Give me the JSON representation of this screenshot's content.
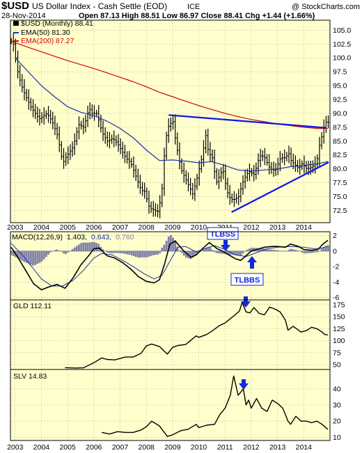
{
  "header": {
    "symbol": "$USD",
    "name": "US Dollar Index - Cash Settle (EOD)",
    "exchange": "ICE",
    "brand": "@ StockCharts.com",
    "date": "28-Nov-2014",
    "quote": "Open 87.13  High 88.51  Low 86.97  Close 88.41  Chg +1.44 (+1.66%)"
  },
  "colors": {
    "panel_bg": "#ffffcc",
    "grid": "#bfbfb0",
    "price": "#000000",
    "ema50": "#1b2fa8",
    "ema200": "#d40000",
    "trendline": "#1010ee",
    "histogram": "#8080a8",
    "annotation": "#1428dd",
    "text": "#000000"
  },
  "chart_data": [
    {
      "type": "ohlc",
      "title": "$USD (Monthly) 88.41",
      "legend": [
        {
          "label": "$USD (Monthly) 88.41",
          "color": "#000000"
        },
        {
          "label": "EMA(50) 81.30",
          "color": "#1b2fa8"
        },
        {
          "label": "EMA(200) 87.27",
          "color": "#d40000"
        }
      ],
      "y_ticks": [
        "105.0",
        "102.5",
        "100.0",
        "97.5",
        "95.0",
        "92.5",
        "90.0",
        "87.5",
        "85.0",
        "82.5",
        "80.0",
        "77.5",
        "75.0",
        "72.5"
      ],
      "ylim": [
        70.3,
        106.8
      ],
      "x_ticks": [
        "2003",
        "2004",
        "2005",
        "2006",
        "2007",
        "2008",
        "2009",
        "2010",
        "2011",
        "2012",
        "2013",
        "2014"
      ],
      "xlim": [
        2002.82,
        2015.0
      ],
      "price_anchors": [
        [
          2003.0,
          103
        ],
        [
          2003.2,
          97
        ],
        [
          2003.4,
          94
        ],
        [
          2003.7,
          91
        ],
        [
          2004.0,
          89
        ],
        [
          2004.3,
          90
        ],
        [
          2004.5,
          88.5
        ],
        [
          2004.7,
          86
        ],
        [
          2004.9,
          81
        ],
        [
          2005.0,
          82
        ],
        [
          2005.3,
          84
        ],
        [
          2005.5,
          88
        ],
        [
          2005.7,
          87.5
        ],
        [
          2005.9,
          91
        ],
        [
          2006.0,
          90
        ],
        [
          2006.2,
          90
        ],
        [
          2006.4,
          86.5
        ],
        [
          2006.6,
          85
        ],
        [
          2006.8,
          85.5
        ],
        [
          2007.0,
          84.5
        ],
        [
          2007.3,
          82
        ],
        [
          2007.5,
          81
        ],
        [
          2007.7,
          78.5
        ],
        [
          2007.9,
          76
        ],
        [
          2008.0,
          76.2
        ],
        [
          2008.2,
          73
        ],
        [
          2008.4,
          72.5
        ],
        [
          2008.55,
          72.3
        ],
        [
          2008.7,
          77
        ],
        [
          2008.8,
          85
        ],
        [
          2008.95,
          88
        ],
        [
          2009.1,
          88.5
        ],
        [
          2009.2,
          85
        ],
        [
          2009.4,
          80
        ],
        [
          2009.6,
          78
        ],
        [
          2009.85,
          75.5
        ],
        [
          2010.0,
          78
        ],
        [
          2010.2,
          82
        ],
        [
          2010.35,
          86
        ],
        [
          2010.45,
          83
        ],
        [
          2010.6,
          82
        ],
        [
          2010.75,
          77.5
        ],
        [
          2010.9,
          79
        ],
        [
          2011.0,
          80
        ],
        [
          2011.15,
          76
        ],
        [
          2011.3,
          74.5
        ],
        [
          2011.45,
          74.5
        ],
        [
          2011.6,
          75
        ],
        [
          2011.75,
          77.5
        ],
        [
          2011.9,
          79
        ],
        [
          2012.0,
          79.5
        ],
        [
          2012.2,
          79
        ],
        [
          2012.35,
          81.5
        ],
        [
          2012.45,
          82.5
        ],
        [
          2012.6,
          82
        ],
        [
          2012.8,
          80
        ],
        [
          2013.0,
          79.7
        ],
        [
          2013.2,
          82
        ],
        [
          2013.4,
          82
        ],
        [
          2013.5,
          83
        ],
        [
          2013.6,
          81.5
        ],
        [
          2013.8,
          80.5
        ],
        [
          2013.9,
          80
        ],
        [
          2014.0,
          81
        ],
        [
          2014.2,
          80
        ],
        [
          2014.4,
          80.3
        ],
        [
          2014.55,
          81
        ],
        [
          2014.62,
          82.2
        ],
        [
          2014.7,
          84.8
        ],
        [
          2014.78,
          86
        ],
        [
          2014.85,
          87.5
        ],
        [
          2014.92,
          88.41
        ]
      ],
      "ema50": [
        [
          2003.0,
          100
        ],
        [
          2003.5,
          97.5
        ],
        [
          2004.0,
          95
        ],
        [
          2004.5,
          93
        ],
        [
          2005.0,
          91.2
        ],
        [
          2005.5,
          90.2
        ],
        [
          2006.0,
          89.6
        ],
        [
          2006.5,
          88.6
        ],
        [
          2007.0,
          87.3
        ],
        [
          2007.5,
          85.6
        ],
        [
          2008.0,
          83.4
        ],
        [
          2008.5,
          81.5
        ],
        [
          2009.0,
          81.6
        ],
        [
          2009.5,
          81.4
        ],
        [
          2010.0,
          81.1
        ],
        [
          2010.5,
          81.3
        ],
        [
          2011.0,
          80.6
        ],
        [
          2011.5,
          79.8
        ],
        [
          2012.0,
          79.6
        ],
        [
          2012.5,
          79.8
        ],
        [
          2013.0,
          80
        ],
        [
          2013.5,
          80.4
        ],
        [
          2014.0,
          80.6
        ],
        [
          2014.5,
          80.9
        ],
        [
          2014.92,
          81.3
        ]
      ],
      "ema200": [
        [
          2002.85,
          103
        ],
        [
          2003.5,
          101.9
        ],
        [
          2004.0,
          101.1
        ],
        [
          2004.5,
          100.3
        ],
        [
          2005.0,
          99.5
        ],
        [
          2005.5,
          98.8
        ],
        [
          2006.0,
          98.1
        ],
        [
          2006.5,
          97.3
        ],
        [
          2007.0,
          96.5
        ],
        [
          2007.5,
          95.7
        ],
        [
          2008.0,
          94.8
        ],
        [
          2008.5,
          93.8
        ],
        [
          2009.0,
          93
        ],
        [
          2009.5,
          92.2
        ],
        [
          2010.0,
          91.4
        ],
        [
          2010.5,
          90.7
        ],
        [
          2011.0,
          90
        ],
        [
          2011.5,
          89.4
        ],
        [
          2012.0,
          88.9
        ],
        [
          2012.5,
          88.5
        ],
        [
          2013.0,
          88.1
        ],
        [
          2013.5,
          87.8
        ],
        [
          2014.0,
          87.5
        ],
        [
          2014.5,
          87.3
        ],
        [
          2014.92,
          87.27
        ]
      ],
      "trendlines": [
        {
          "from": [
            2008.85,
            89.7
          ],
          "to": [
            2014.85,
            87.4
          ]
        },
        {
          "from": [
            2011.25,
            72.2
          ],
          "to": [
            2014.95,
            81.2
          ]
        }
      ]
    },
    {
      "type": "line",
      "title": "MACD(12,26,9) 1.403, 0.643, 0.760",
      "legend": [
        {
          "label": "MACD(12,26,9)",
          "color": "#000000"
        },
        {
          "label": "1.403,",
          "color": "#000000"
        },
        {
          "label": "0.643,",
          "color": "#1b2fa8"
        },
        {
          "label": "0.760",
          "color": "#8080a8"
        }
      ],
      "y_ticks": [
        "2",
        "0",
        "-2",
        "-4",
        "-6"
      ],
      "ylim": [
        -6.3,
        2.5
      ],
      "macd": [
        [
          2002.85,
          0.5
        ],
        [
          2003.1,
          -0.8
        ],
        [
          2003.4,
          -2.5
        ],
        [
          2003.7,
          -4.2
        ],
        [
          2004.0,
          -5.0
        ],
        [
          2004.3,
          -4.6
        ],
        [
          2004.6,
          -4.3
        ],
        [
          2004.9,
          -4.8
        ],
        [
          2005.2,
          -3.5
        ],
        [
          2005.5,
          -1.8
        ],
        [
          2005.8,
          -0.6
        ],
        [
          2006.0,
          0.3
        ],
        [
          2006.2,
          0.4
        ],
        [
          2006.5,
          -0.6
        ],
        [
          2006.8,
          -0.9
        ],
        [
          2007.1,
          -1.5
        ],
        [
          2007.4,
          -2.3
        ],
        [
          2007.7,
          -3.3
        ],
        [
          2008.0,
          -3.9
        ],
        [
          2008.3,
          -4.1
        ],
        [
          2008.5,
          -3.7
        ],
        [
          2008.7,
          -1.6
        ],
        [
          2008.9,
          0.9
        ],
        [
          2009.1,
          1.3
        ],
        [
          2009.4,
          0.1
        ],
        [
          2009.7,
          -0.8
        ],
        [
          2009.9,
          -0.5
        ],
        [
          2010.2,
          0.5
        ],
        [
          2010.4,
          1.1
        ],
        [
          2010.7,
          0.3
        ],
        [
          2010.9,
          0.0
        ],
        [
          2011.2,
          -0.6
        ],
        [
          2011.4,
          -1.0
        ],
        [
          2011.6,
          -1.2
        ],
        [
          2011.8,
          -0.6
        ],
        [
          2012.0,
          0.0
        ],
        [
          2012.3,
          0.3
        ],
        [
          2012.5,
          0.5
        ],
        [
          2012.8,
          0.6
        ],
        [
          2013.0,
          0.6
        ],
        [
          2013.3,
          0.5
        ],
        [
          2013.5,
          0.9
        ],
        [
          2013.8,
          0.6
        ],
        [
          2014.0,
          0.2
        ],
        [
          2014.3,
          0.1
        ],
        [
          2014.55,
          0.2
        ],
        [
          2014.7,
          0.8
        ],
        [
          2014.92,
          1.4
        ]
      ],
      "signal": [
        [
          2002.85,
          1.0
        ],
        [
          2003.3,
          -0.6
        ],
        [
          2003.7,
          -2.3
        ],
        [
          2004.0,
          -3.6
        ],
        [
          2004.4,
          -4.5
        ],
        [
          2004.8,
          -4.5
        ],
        [
          2005.2,
          -3.8
        ],
        [
          2005.6,
          -2.5
        ],
        [
          2006.0,
          -0.9
        ],
        [
          2006.3,
          -0.3
        ],
        [
          2006.7,
          -0.5
        ],
        [
          2007.1,
          -1.2
        ],
        [
          2007.5,
          -2.0
        ],
        [
          2007.9,
          -2.9
        ],
        [
          2008.3,
          -3.6
        ],
        [
          2008.6,
          -3.1
        ],
        [
          2008.9,
          -1.3
        ],
        [
          2009.2,
          0.5
        ],
        [
          2009.5,
          0.6
        ],
        [
          2009.9,
          -0.1
        ],
        [
          2010.3,
          0.4
        ],
        [
          2010.6,
          0.7
        ],
        [
          2011.0,
          0.2
        ],
        [
          2011.4,
          -0.5
        ],
        [
          2011.8,
          -0.7
        ],
        [
          2012.2,
          -0.2
        ],
        [
          2012.6,
          0.3
        ],
        [
          2013.0,
          0.5
        ],
        [
          2013.5,
          0.6
        ],
        [
          2014.0,
          0.5
        ],
        [
          2014.4,
          0.3
        ],
        [
          2014.7,
          0.4
        ],
        [
          2014.92,
          0.64
        ]
      ],
      "annotations": [
        "TLBSS",
        "TLBBS"
      ]
    },
    {
      "type": "line",
      "title": "GLD 112.11",
      "y_ticks": [
        "175",
        "150",
        "125",
        "100",
        "75",
        "50"
      ],
      "ylim": [
        40,
        185
      ],
      "xlim": [
        2002.82,
        2015.0
      ],
      "values": [
        [
          2004.9,
          43.8
        ],
        [
          2005.3,
          43
        ],
        [
          2005.6,
          43.5
        ],
        [
          2006.0,
          54
        ],
        [
          2006.3,
          64
        ],
        [
          2006.5,
          61
        ],
        [
          2006.8,
          60
        ],
        [
          2007.2,
          66
        ],
        [
          2007.5,
          66
        ],
        [
          2007.8,
          74
        ],
        [
          2008.0,
          89
        ],
        [
          2008.2,
          93
        ],
        [
          2008.5,
          88
        ],
        [
          2008.8,
          72
        ],
        [
          2009.0,
          86
        ],
        [
          2009.2,
          90
        ],
        [
          2009.5,
          92
        ],
        [
          2009.9,
          110
        ],
        [
          2010.0,
          107
        ],
        [
          2010.3,
          113
        ],
        [
          2010.5,
          120
        ],
        [
          2010.8,
          132
        ],
        [
          2011.0,
          137
        ],
        [
          2011.3,
          150
        ],
        [
          2011.55,
          162
        ],
        [
          2011.65,
          180
        ],
        [
          2011.8,
          160
        ],
        [
          2011.95,
          158
        ],
        [
          2012.1,
          169
        ],
        [
          2012.3,
          157
        ],
        [
          2012.5,
          154
        ],
        [
          2012.7,
          170
        ],
        [
          2012.9,
          166
        ],
        [
          2013.1,
          160
        ],
        [
          2013.3,
          143
        ],
        [
          2013.4,
          122
        ],
        [
          2013.6,
          130
        ],
        [
          2013.9,
          118
        ],
        [
          2014.1,
          121
        ],
        [
          2014.3,
          128
        ],
        [
          2014.5,
          125
        ],
        [
          2014.7,
          118
        ],
        [
          2014.8,
          113
        ],
        [
          2014.92,
          112.11
        ]
      ],
      "annotation": "arrow-down"
    },
    {
      "type": "line",
      "title": "SLV 14.83",
      "y_ticks": [
        "40",
        "30",
        "20",
        "10"
      ],
      "ylim": [
        8,
        52
      ],
      "xlim": [
        2002.82,
        2015.0
      ],
      "values": [
        [
          2006.3,
          13
        ],
        [
          2006.6,
          12
        ],
        [
          2006.9,
          13.5
        ],
        [
          2007.2,
          13
        ],
        [
          2007.5,
          13
        ],
        [
          2007.8,
          14.5
        ],
        [
          2008.0,
          16.5
        ],
        [
          2008.2,
          20
        ],
        [
          2008.5,
          17
        ],
        [
          2008.8,
          10.5
        ],
        [
          2009.0,
          11.5
        ],
        [
          2009.3,
          14
        ],
        [
          2009.6,
          15
        ],
        [
          2009.9,
          18
        ],
        [
          2010.0,
          16
        ],
        [
          2010.3,
          17.5
        ],
        [
          2010.6,
          18
        ],
        [
          2010.8,
          24
        ],
        [
          2011.0,
          28
        ],
        [
          2011.2,
          36
        ],
        [
          2011.33,
          48
        ],
        [
          2011.5,
          36
        ],
        [
          2011.7,
          40
        ],
        [
          2011.8,
          30
        ],
        [
          2011.9,
          33
        ],
        [
          2012.0,
          28
        ],
        [
          2012.2,
          34
        ],
        [
          2012.4,
          28
        ],
        [
          2012.6,
          26
        ],
        [
          2012.8,
          33
        ],
        [
          2013.0,
          31
        ],
        [
          2013.2,
          28
        ],
        [
          2013.4,
          20
        ],
        [
          2013.5,
          18
        ],
        [
          2013.7,
          23
        ],
        [
          2013.9,
          20
        ],
        [
          2014.1,
          20
        ],
        [
          2014.3,
          19
        ],
        [
          2014.5,
          20
        ],
        [
          2014.7,
          18
        ],
        [
          2014.92,
          14.83
        ]
      ],
      "annotation": "arrow-down"
    }
  ]
}
